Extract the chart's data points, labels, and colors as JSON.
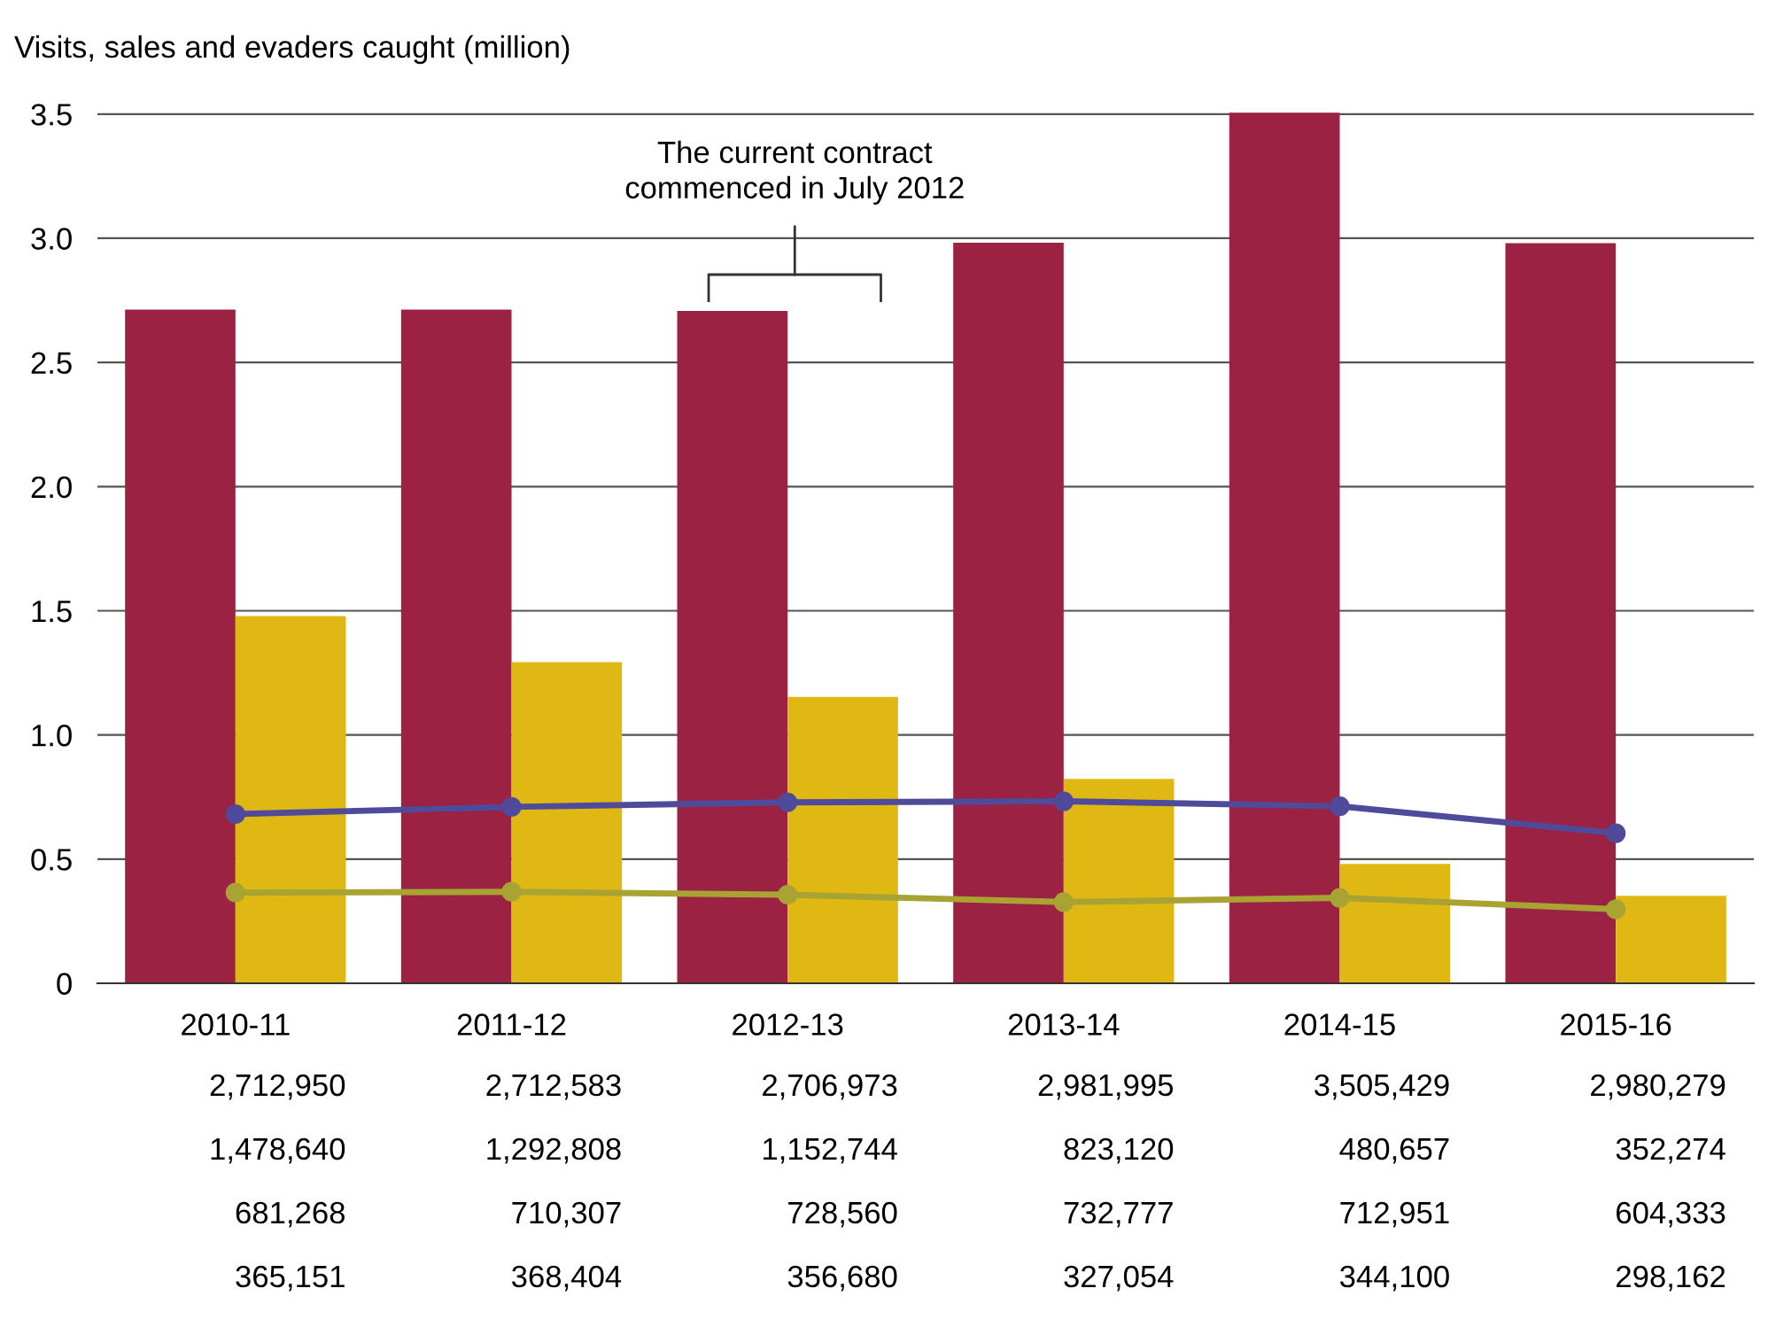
{
  "chart_data": {
    "type": "bar",
    "ylabel": "Visits, sales and evaders caught (million)",
    "categories": [
      "2010-11",
      "2011-12",
      "2012-13",
      "2013-14",
      "2014-15",
      "2015-16"
    ],
    "series": [
      {
        "color": "#9b2242",
        "values": [
          2.71295,
          2.712583,
          2.706973,
          2.981995,
          3.505429,
          2.980279
        ]
      },
      {
        "color": "#e0b814",
        "values": [
          1.47864,
          1.292808,
          1.152744,
          0.82312,
          0.480657,
          0.352274
        ]
      },
      {
        "type": "line",
        "color": "#4f4a9a",
        "values": [
          0.681268,
          0.710307,
          0.72856,
          0.732777,
          0.712951,
          0.604333
        ]
      },
      {
        "type": "line",
        "color": "#a8a332",
        "values": [
          0.365151,
          0.368404,
          0.35668,
          0.327054,
          0.3441,
          0.298162
        ]
      }
    ],
    "annotations": [
      "The current contract\ncommenced in July 2012",
      "2,712,950",
      "2,712,583",
      "2,706,973",
      "2,981,995",
      "3,505,429",
      "2,980,279",
      "1,478,640",
      "1,292,808",
      "1,152,744",
      "823,120",
      "480,657",
      "352,274",
      "681,268",
      "710,307",
      "728,560",
      "732,777",
      "712,951",
      "604,333",
      "365,151",
      "368,404",
      "356,680",
      "327,054",
      "344,100",
      "298,162"
    ],
    "ylim": [
      0,
      3.51
    ],
    "yticks": [
      0,
      0.5,
      {
        "value": 1,
        "label": "1.0"
      },
      1.5,
      {
        "value": 2,
        "label": "2.0"
      },
      2.5,
      {
        "value": 3,
        "label": "3.0"
      },
      3.5
    ],
    "grid": "y",
    "marker": "circle",
    "line_style": "solid"
  }
}
